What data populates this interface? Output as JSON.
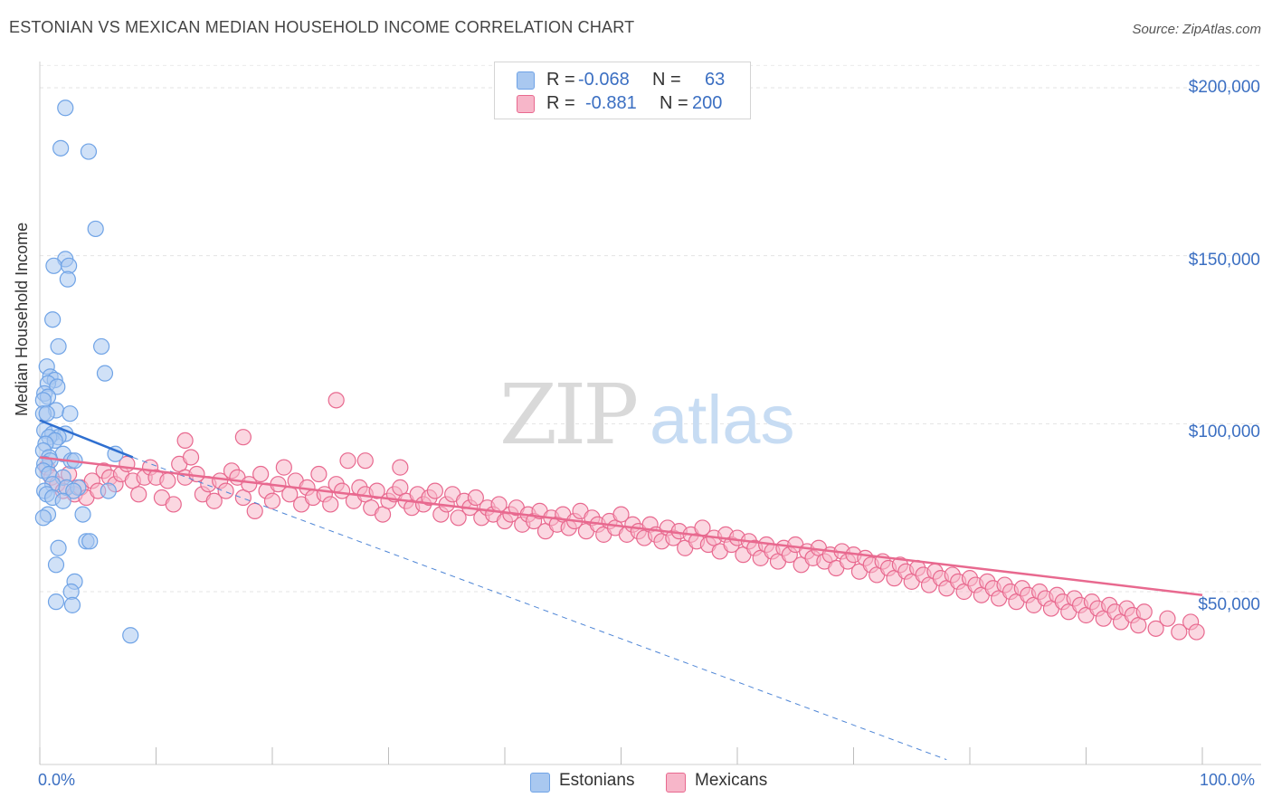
{
  "header": {
    "title": "ESTONIAN VS MEXICAN MEDIAN HOUSEHOLD INCOME CORRELATION CHART",
    "source": "Source: ZipAtlas.com"
  },
  "watermark": {
    "zip": "ZIP",
    "atlas": "atlas"
  },
  "legend": {
    "rows": [
      {
        "r_label": "R =",
        "r_value": "-0.068",
        "n_label": "N =",
        "n_value": "63",
        "color": "#a9c8f0"
      },
      {
        "r_label": "R =",
        "r_value": "-0.881",
        "n_label": "N =",
        "n_value": "200",
        "color": "#f7b6c9"
      }
    ]
  },
  "bottom_legend": [
    {
      "label": "Estonians",
      "color": "#a9c8f0"
    },
    {
      "label": "Mexicans",
      "color": "#f7b6c9"
    }
  ],
  "chart_data": {
    "type": "scatter",
    "title": "ESTONIAN VS MEXICAN MEDIAN HOUSEHOLD INCOME CORRELATION CHART",
    "ylabel": "Median Household Income",
    "xlabel": "",
    "x_tick_labels": [
      "0.0%",
      "100.0%"
    ],
    "y_tick_labels": [
      "$50,000",
      "$100,000",
      "$150,000",
      "$200,000"
    ],
    "y_ticks": [
      50000,
      100000,
      150000,
      200000
    ],
    "xlim": [
      0,
      100
    ],
    "ylim": [
      0,
      205000
    ],
    "grid": "horizontal dashed",
    "legend_placement": "top-center",
    "series": [
      {
        "name": "Estonians",
        "color": "#6fa3e6",
        "fill": "#a9c8f0",
        "R": -0.068,
        "N": 63,
        "trend": {
          "x": [
            0,
            8
          ],
          "y": [
            101000,
            90000
          ]
        },
        "trend_extension": {
          "x": [
            8,
            78
          ],
          "y": [
            90000,
            0
          ]
        },
        "points": [
          [
            2.2,
            194000
          ],
          [
            1.8,
            182000
          ],
          [
            4.2,
            181000
          ],
          [
            4.8,
            158000
          ],
          [
            2.2,
            149000
          ],
          [
            1.2,
            147000
          ],
          [
            2.5,
            147000
          ],
          [
            2.4,
            143000
          ],
          [
            1.1,
            131000
          ],
          [
            1.6,
            123000
          ],
          [
            5.3,
            123000
          ],
          [
            5.6,
            115000
          ],
          [
            0.6,
            117000
          ],
          [
            0.9,
            114000
          ],
          [
            1.3,
            113000
          ],
          [
            0.7,
            112000
          ],
          [
            1.5,
            111000
          ],
          [
            0.4,
            109000
          ],
          [
            0.7,
            108000
          ],
          [
            0.3,
            107000
          ],
          [
            1.4,
            104000
          ],
          [
            0.3,
            103000
          ],
          [
            0.6,
            103000
          ],
          [
            2.6,
            103000
          ],
          [
            0.4,
            98000
          ],
          [
            1.1,
            97000
          ],
          [
            2.2,
            97000
          ],
          [
            1.6,
            96000
          ],
          [
            0.8,
            96000
          ],
          [
            1.3,
            95000
          ],
          [
            0.5,
            94000
          ],
          [
            0.3,
            92000
          ],
          [
            2.0,
            91000
          ],
          [
            6.5,
            91000
          ],
          [
            0.8,
            90000
          ],
          [
            2.7,
            89000
          ],
          [
            3.0,
            89000
          ],
          [
            0.9,
            89000
          ],
          [
            0.4,
            88000
          ],
          [
            0.3,
            86000
          ],
          [
            0.8,
            85000
          ],
          [
            2.0,
            84000
          ],
          [
            1.1,
            82000
          ],
          [
            2.3,
            81000
          ],
          [
            3.3,
            81000
          ],
          [
            0.4,
            80000
          ],
          [
            2.9,
            80000
          ],
          [
            5.9,
            80000
          ],
          [
            0.6,
            79000
          ],
          [
            1.1,
            78000
          ],
          [
            2.0,
            77000
          ],
          [
            0.7,
            73000
          ],
          [
            0.3,
            72000
          ],
          [
            3.7,
            73000
          ],
          [
            4.0,
            65000
          ],
          [
            4.3,
            65000
          ],
          [
            1.6,
            63000
          ],
          [
            1.4,
            58000
          ],
          [
            3.0,
            53000
          ],
          [
            2.7,
            50000
          ],
          [
            1.4,
            47000
          ],
          [
            2.8,
            46000
          ],
          [
            7.8,
            37000
          ]
        ]
      },
      {
        "name": "Mexicans",
        "color": "#e8698f",
        "fill": "#f7b6c9",
        "R": -0.881,
        "N": 200,
        "trend": {
          "x": [
            0,
            100
          ],
          "y": [
            90000,
            49000
          ]
        },
        "points": [
          [
            0.6,
            87000
          ],
          [
            1.0,
            84000
          ],
          [
            1.5,
            82000
          ],
          [
            2.0,
            80000
          ],
          [
            2.5,
            85000
          ],
          [
            3.0,
            79000
          ],
          [
            3.5,
            81000
          ],
          [
            4.0,
            78000
          ],
          [
            4.5,
            83000
          ],
          [
            5.0,
            80000
          ],
          [
            5.5,
            86000
          ],
          [
            6.0,
            84000
          ],
          [
            6.5,
            82000
          ],
          [
            7.0,
            85000
          ],
          [
            7.5,
            88000
          ],
          [
            8.0,
            83000
          ],
          [
            8.5,
            79000
          ],
          [
            9.0,
            84000
          ],
          [
            9.5,
            87000
          ],
          [
            10.0,
            84000
          ],
          [
            10.5,
            78000
          ],
          [
            11.0,
            83000
          ],
          [
            11.5,
            76000
          ],
          [
            12.0,
            88000
          ],
          [
            12.5,
            84000
          ],
          [
            13.0,
            90000
          ],
          [
            13.5,
            85000
          ],
          [
            14.0,
            79000
          ],
          [
            14.5,
            82000
          ],
          [
            15.0,
            77000
          ],
          [
            15.5,
            83000
          ],
          [
            16.0,
            80000
          ],
          [
            16.5,
            86000
          ],
          [
            17.0,
            84000
          ],
          [
            17.5,
            78000
          ],
          [
            18.0,
            82000
          ],
          [
            18.5,
            74000
          ],
          [
            19.0,
            85000
          ],
          [
            19.5,
            80000
          ],
          [
            20.0,
            77000
          ],
          [
            20.5,
            82000
          ],
          [
            21.0,
            87000
          ],
          [
            21.5,
            79000
          ],
          [
            22.0,
            83000
          ],
          [
            22.5,
            76000
          ],
          [
            23.0,
            81000
          ],
          [
            23.5,
            78000
          ],
          [
            24.0,
            85000
          ],
          [
            24.5,
            79000
          ],
          [
            25.0,
            76000
          ],
          [
            25.5,
            82000
          ],
          [
            26.0,
            80000
          ],
          [
            26.5,
            89000
          ],
          [
            27.0,
            77000
          ],
          [
            27.5,
            81000
          ],
          [
            28.0,
            79000
          ],
          [
            28.5,
            75000
          ],
          [
            29.0,
            80000
          ],
          [
            29.5,
            73000
          ],
          [
            30.0,
            77000
          ],
          [
            30.5,
            79000
          ],
          [
            31.0,
            81000
          ],
          [
            31.5,
            77000
          ],
          [
            32.0,
            75000
          ],
          [
            32.5,
            79000
          ],
          [
            33.0,
            76000
          ],
          [
            33.5,
            78000
          ],
          [
            34.0,
            80000
          ],
          [
            34.5,
            73000
          ],
          [
            35.0,
            76000
          ],
          [
            35.5,
            79000
          ],
          [
            36.0,
            72000
          ],
          [
            36.5,
            77000
          ],
          [
            37.0,
            75000
          ],
          [
            37.5,
            78000
          ],
          [
            38.0,
            72000
          ],
          [
            38.5,
            75000
          ],
          [
            39.0,
            73000
          ],
          [
            39.5,
            76000
          ],
          [
            40.0,
            71000
          ],
          [
            40.5,
            73000
          ],
          [
            41.0,
            75000
          ],
          [
            41.5,
            70000
          ],
          [
            42.0,
            73000
          ],
          [
            42.5,
            71000
          ],
          [
            43.0,
            74000
          ],
          [
            43.5,
            68000
          ],
          [
            44.0,
            72000
          ],
          [
            44.5,
            70000
          ],
          [
            45.0,
            73000
          ],
          [
            45.5,
            69000
          ],
          [
            46.0,
            71000
          ],
          [
            46.5,
            74000
          ],
          [
            47.0,
            68000
          ],
          [
            47.5,
            72000
          ],
          [
            48.0,
            70000
          ],
          [
            48.5,
            67000
          ],
          [
            49.0,
            71000
          ],
          [
            49.5,
            69000
          ],
          [
            50.0,
            73000
          ],
          [
            50.5,
            67000
          ],
          [
            51.0,
            70000
          ],
          [
            51.5,
            68000
          ],
          [
            52.0,
            66000
          ],
          [
            52.5,
            70000
          ],
          [
            53.0,
            67000
          ],
          [
            53.5,
            65000
          ],
          [
            54.0,
            69000
          ],
          [
            54.5,
            66000
          ],
          [
            55.0,
            68000
          ],
          [
            55.5,
            63000
          ],
          [
            56.0,
            67000
          ],
          [
            56.5,
            65000
          ],
          [
            57.0,
            69000
          ],
          [
            57.5,
            64000
          ],
          [
            58.0,
            66000
          ],
          [
            58.5,
            62000
          ],
          [
            59.0,
            67000
          ],
          [
            59.5,
            64000
          ],
          [
            60.0,
            66000
          ],
          [
            60.5,
            61000
          ],
          [
            61.0,
            65000
          ],
          [
            61.5,
            63000
          ],
          [
            62.0,
            60000
          ],
          [
            62.5,
            64000
          ],
          [
            63.0,
            62000
          ],
          [
            63.5,
            59000
          ],
          [
            64.0,
            63000
          ],
          [
            64.5,
            61000
          ],
          [
            65.0,
            64000
          ],
          [
            65.5,
            58000
          ],
          [
            66.0,
            62000
          ],
          [
            66.5,
            60000
          ],
          [
            67.0,
            63000
          ],
          [
            67.5,
            59000
          ],
          [
            68.0,
            61000
          ],
          [
            68.5,
            57000
          ],
          [
            69.0,
            62000
          ],
          [
            69.5,
            59000
          ],
          [
            70.0,
            61000
          ],
          [
            70.5,
            56000
          ],
          [
            71.0,
            60000
          ],
          [
            71.5,
            58000
          ],
          [
            72.0,
            55000
          ],
          [
            72.5,
            59000
          ],
          [
            73.0,
            57000
          ],
          [
            73.5,
            54000
          ],
          [
            74.0,
            58000
          ],
          [
            74.5,
            56000
          ],
          [
            75.0,
            53000
          ],
          [
            75.5,
            57000
          ],
          [
            76.0,
            55000
          ],
          [
            76.5,
            52000
          ],
          [
            77.0,
            56000
          ],
          [
            77.5,
            54000
          ],
          [
            78.0,
            51000
          ],
          [
            78.5,
            55000
          ],
          [
            79.0,
            53000
          ],
          [
            79.5,
            50000
          ],
          [
            80.0,
            54000
          ],
          [
            80.5,
            52000
          ],
          [
            81.0,
            49000
          ],
          [
            81.5,
            53000
          ],
          [
            82.0,
            51000
          ],
          [
            82.5,
            48000
          ],
          [
            83.0,
            52000
          ],
          [
            83.5,
            50000
          ],
          [
            84.0,
            47000
          ],
          [
            84.5,
            51000
          ],
          [
            85.0,
            49000
          ],
          [
            85.5,
            46000
          ],
          [
            86.0,
            50000
          ],
          [
            86.5,
            48000
          ],
          [
            87.0,
            45000
          ],
          [
            87.5,
            49000
          ],
          [
            88.0,
            47000
          ],
          [
            88.5,
            44000
          ],
          [
            89.0,
            48000
          ],
          [
            89.5,
            46000
          ],
          [
            90.0,
            43000
          ],
          [
            90.5,
            47000
          ],
          [
            91.0,
            45000
          ],
          [
            91.5,
            42000
          ],
          [
            92.0,
            46000
          ],
          [
            92.5,
            44000
          ],
          [
            93.0,
            41000
          ],
          [
            93.5,
            45000
          ],
          [
            94.0,
            43000
          ],
          [
            94.5,
            40000
          ],
          [
            95.0,
            44000
          ],
          [
            96.0,
            39000
          ],
          [
            97.0,
            42000
          ],
          [
            98.0,
            38000
          ],
          [
            99.0,
            41000
          ],
          [
            99.5,
            38000
          ],
          [
            25.5,
            107000
          ],
          [
            28.0,
            89000
          ],
          [
            12.5,
            95000
          ],
          [
            17.5,
            96000
          ],
          [
            31.0,
            87000
          ]
        ]
      }
    ]
  }
}
